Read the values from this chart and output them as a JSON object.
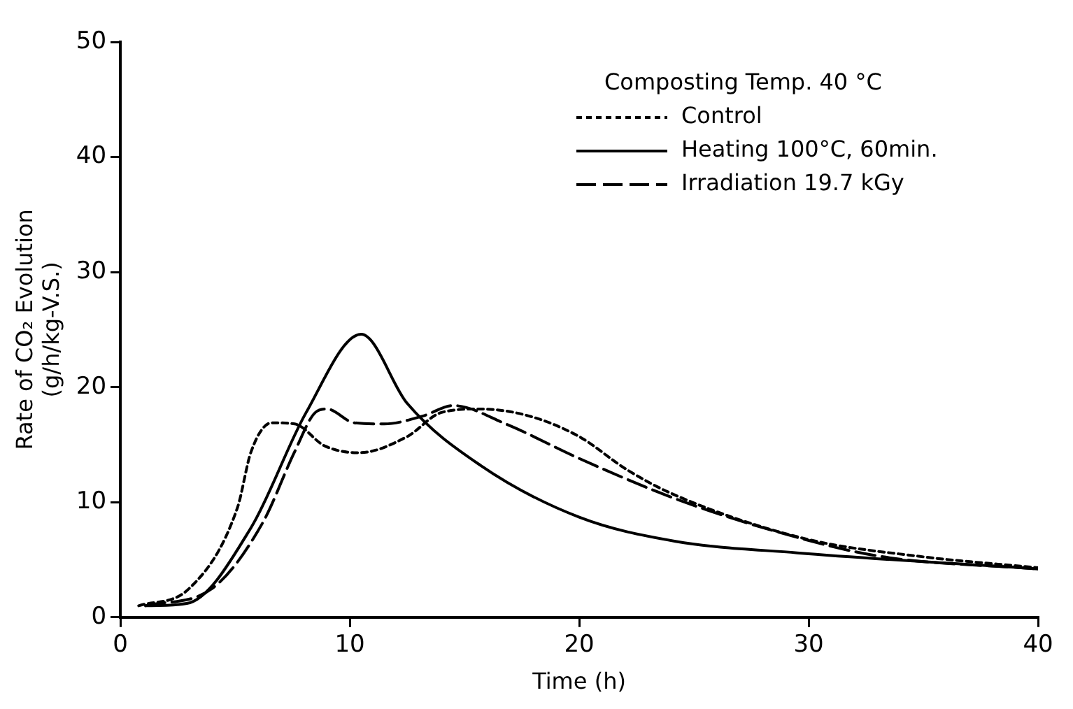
{
  "chart_data": {
    "type": "line",
    "xlabel": "Time (h)",
    "ylabel": "Rate of CO₂ Evolution\n(g/h/kg-V.S.)",
    "legend_title": "Composting Temp. 40 °C",
    "legend": "top right",
    "marker": "none",
    "grid": false,
    "xlim": [
      0,
      40
    ],
    "xticks": [
      0,
      10,
      20,
      30,
      40
    ],
    "ylim": [
      0,
      50
    ],
    "yticks": [
      0,
      10,
      20,
      30,
      40,
      50
    ],
    "series": [
      {
        "name": "Control",
        "color": "#000000",
        "line_style": "dotted",
        "x": [
          0.8,
          3,
          5.1,
          5.7,
          6.6,
          7.6,
          8.9,
          10.4,
          12.5,
          14,
          15.7,
          17.8,
          20,
          22.1,
          24.2,
          29.9,
          34.8,
          40
        ],
        "values": [
          1,
          2.5,
          9.5,
          14.4,
          16.9,
          16.8,
          14.9,
          14.3,
          15.7,
          17.8,
          18.1,
          17.5,
          15.7,
          12.8,
          10.6,
          6.8,
          5.3,
          4.3
        ]
      },
      {
        "name": "Heating 100°C, 60min.",
        "color": "#000000",
        "line_style": "solid",
        "x": [
          1.1,
          2.9,
          5.7,
          8.1,
          10.5,
          12.5,
          15.7,
          20,
          24.2,
          29.5,
          40
        ],
        "values": [
          1,
          1.2,
          7.8,
          17.8,
          24.6,
          18.6,
          13.2,
          8.7,
          6.6,
          5.6,
          4.2
        ]
      },
      {
        "name": "Irradiation 19.7 kGy",
        "color": "#000000",
        "line_style": "dashed",
        "x": [
          1.1,
          4,
          6.2,
          7.6,
          8.5,
          9,
          10.2,
          11.5,
          13.2,
          14.5,
          16.8,
          20,
          24.2,
          28.5,
          33.1,
          40
        ],
        "values": [
          1,
          2.5,
          8.2,
          14.4,
          17.8,
          18.1,
          16.9,
          16.8,
          17.5,
          18.4,
          16.8,
          13.8,
          10.3,
          7.5,
          5.3,
          4.2
        ]
      }
    ]
  }
}
